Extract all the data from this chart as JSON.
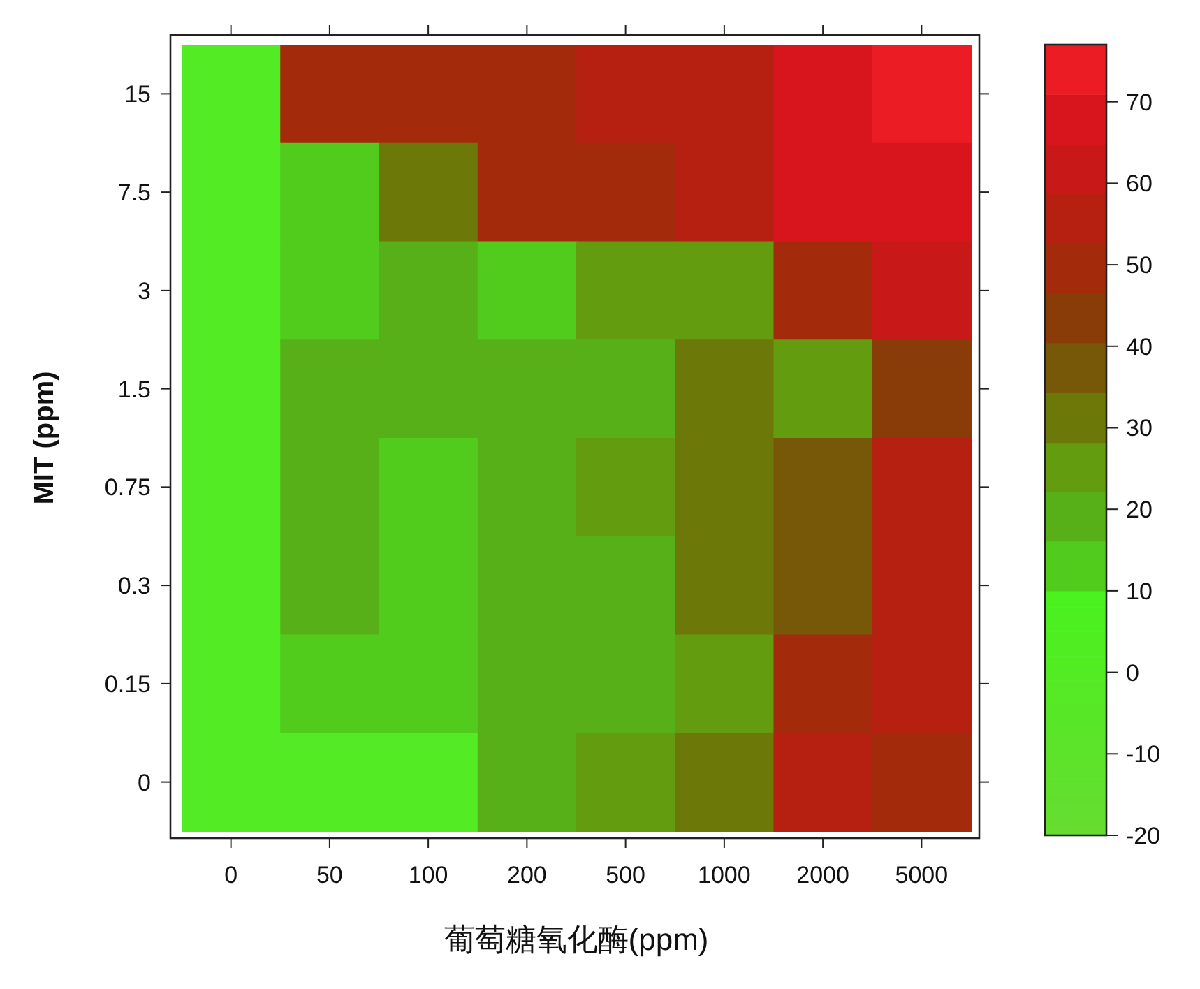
{
  "chart_data": {
    "type": "heatmap",
    "xlabel": "葡萄糖氧化酶(ppm)",
    "ylabel": "MIT (ppm)",
    "categories": [
      "0",
      "50",
      "100",
      "200",
      "500",
      "1000",
      "2000",
      "5000"
    ],
    "y_categories": [
      "15",
      "7.5",
      "3",
      "1.5",
      "0.75",
      "0.3",
      "0.15",
      "0"
    ],
    "cells": [
      [
        0,
        50,
        50,
        50,
        58,
        58,
        66,
        74
      ],
      [
        0,
        12,
        32,
        50,
        50,
        58,
        66,
        68
      ],
      [
        0,
        12,
        18,
        12,
        25,
        25,
        52,
        64
      ],
      [
        0,
        18,
        18,
        18,
        18,
        32,
        25,
        43
      ],
      [
        0,
        18,
        12,
        18,
        25,
        32,
        37,
        58
      ],
      [
        0,
        18,
        12,
        18,
        18,
        32,
        37,
        58
      ],
      [
        0,
        12,
        12,
        18,
        18,
        25,
        52,
        58
      ],
      [
        0,
        0,
        0,
        18,
        25,
        32,
        58,
        52
      ]
    ],
    "clim": [
      -20,
      77
    ],
    "cticks": [
      -20,
      -10,
      0,
      10,
      20,
      30,
      40,
      50,
      60,
      70
    ]
  }
}
